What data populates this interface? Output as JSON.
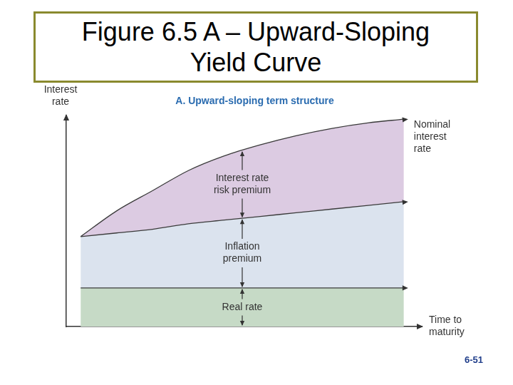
{
  "slide": {
    "title": "Figure 6.5 A – Upward-Sloping Yield Curve",
    "page": "6-51"
  },
  "chart_data": {
    "type": "area",
    "title": "A. Upward-sloping term structure",
    "x_label": "Time to maturity",
    "y_label": "Interest rate",
    "x": [
      0,
      1,
      2,
      3,
      4,
      5,
      6,
      7,
      8,
      9
    ],
    "series": [
      {
        "name": "Real rate",
        "color": "#c6dac6",
        "values": [
          21,
          21,
          21,
          21,
          21,
          21,
          21,
          21,
          21,
          21
        ]
      },
      {
        "name": "Inflation premium",
        "color": "#dbe3ee",
        "values": [
          28,
          30,
          32,
          35,
          37,
          39,
          41,
          43,
          45,
          47
        ]
      },
      {
        "name": "Interest rate risk premium",
        "color": "#dccbe2",
        "values": [
          0,
          12,
          21,
          29,
          35,
          39,
          42,
          44,
          45,
          45
        ]
      }
    ],
    "annotations": [
      {
        "text": "Nominal interest rate"
      }
    ],
    "xlim": [
      -0.4,
      9.5
    ],
    "ylim": [
      0,
      115
    ],
    "stacked": true,
    "grid": false,
    "tick_labels": false
  }
}
